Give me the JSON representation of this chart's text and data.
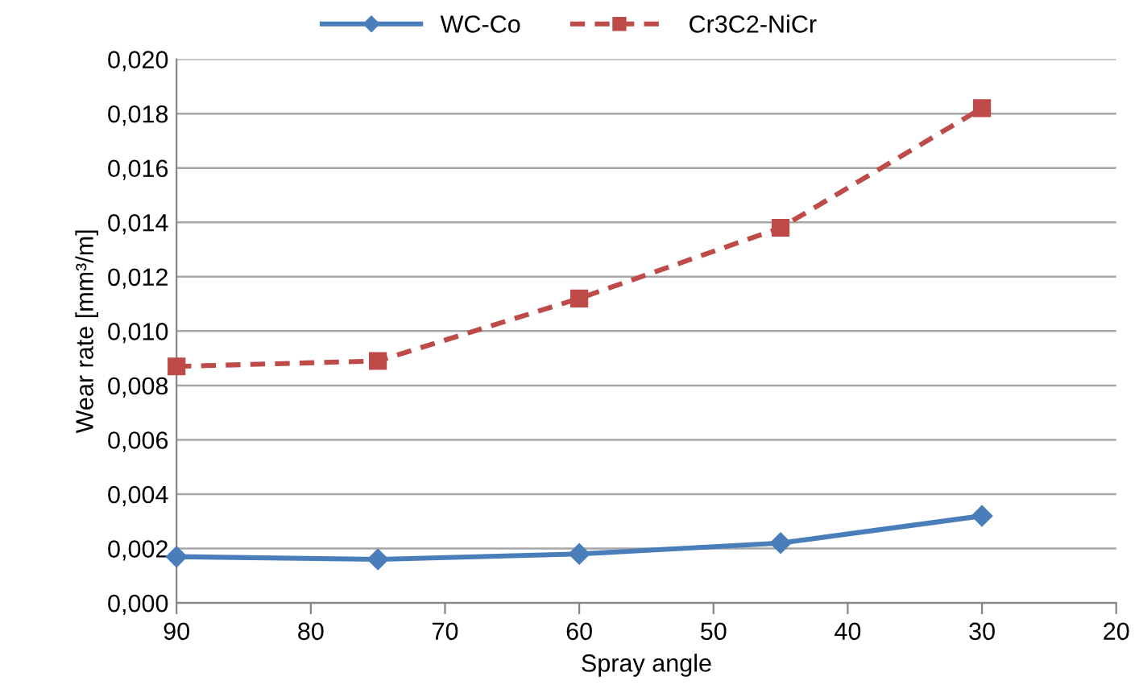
{
  "chart_data": {
    "type": "line",
    "xlabel": "Spray angle",
    "ylabel": "Wear rate [mm³/m]",
    "xlim": [
      90,
      20
    ],
    "xticks": [
      90,
      80,
      70,
      60,
      50,
      40,
      30,
      20
    ],
    "ylim": [
      0,
      0.02
    ],
    "yticks": [
      {
        "value": 0,
        "label": "0,000"
      },
      {
        "value": 0.002,
        "label": "0,002"
      },
      {
        "value": 0.004,
        "label": "0,004"
      },
      {
        "value": 0.006,
        "label": "0,006"
      },
      {
        "value": 0.008,
        "label": "0,008"
      },
      {
        "value": 0.01,
        "label": "0,010"
      },
      {
        "value": 0.012,
        "label": "0,012"
      },
      {
        "value": 0.014,
        "label": "0,014"
      },
      {
        "value": 0.016,
        "label": "0,016"
      },
      {
        "value": 0.018,
        "label": "0,018"
      },
      {
        "value": 0.02,
        "label": "0,020"
      }
    ],
    "grid": "y",
    "legend": "top",
    "x": [
      90,
      75,
      60,
      45,
      30
    ],
    "series": [
      {
        "name": "WC-Co",
        "color": "#4a7ebb",
        "marker": "diamond",
        "line_style": "solid",
        "values": [
          0.0017,
          0.0016,
          0.0018,
          0.0022,
          0.0032
        ]
      },
      {
        "name": "Cr3C2-NiCr",
        "color": "#be4b48",
        "marker": "square",
        "line_style": "dashed",
        "values": [
          0.0087,
          0.0089,
          0.0112,
          0.0138,
          0.0182
        ]
      }
    ]
  }
}
